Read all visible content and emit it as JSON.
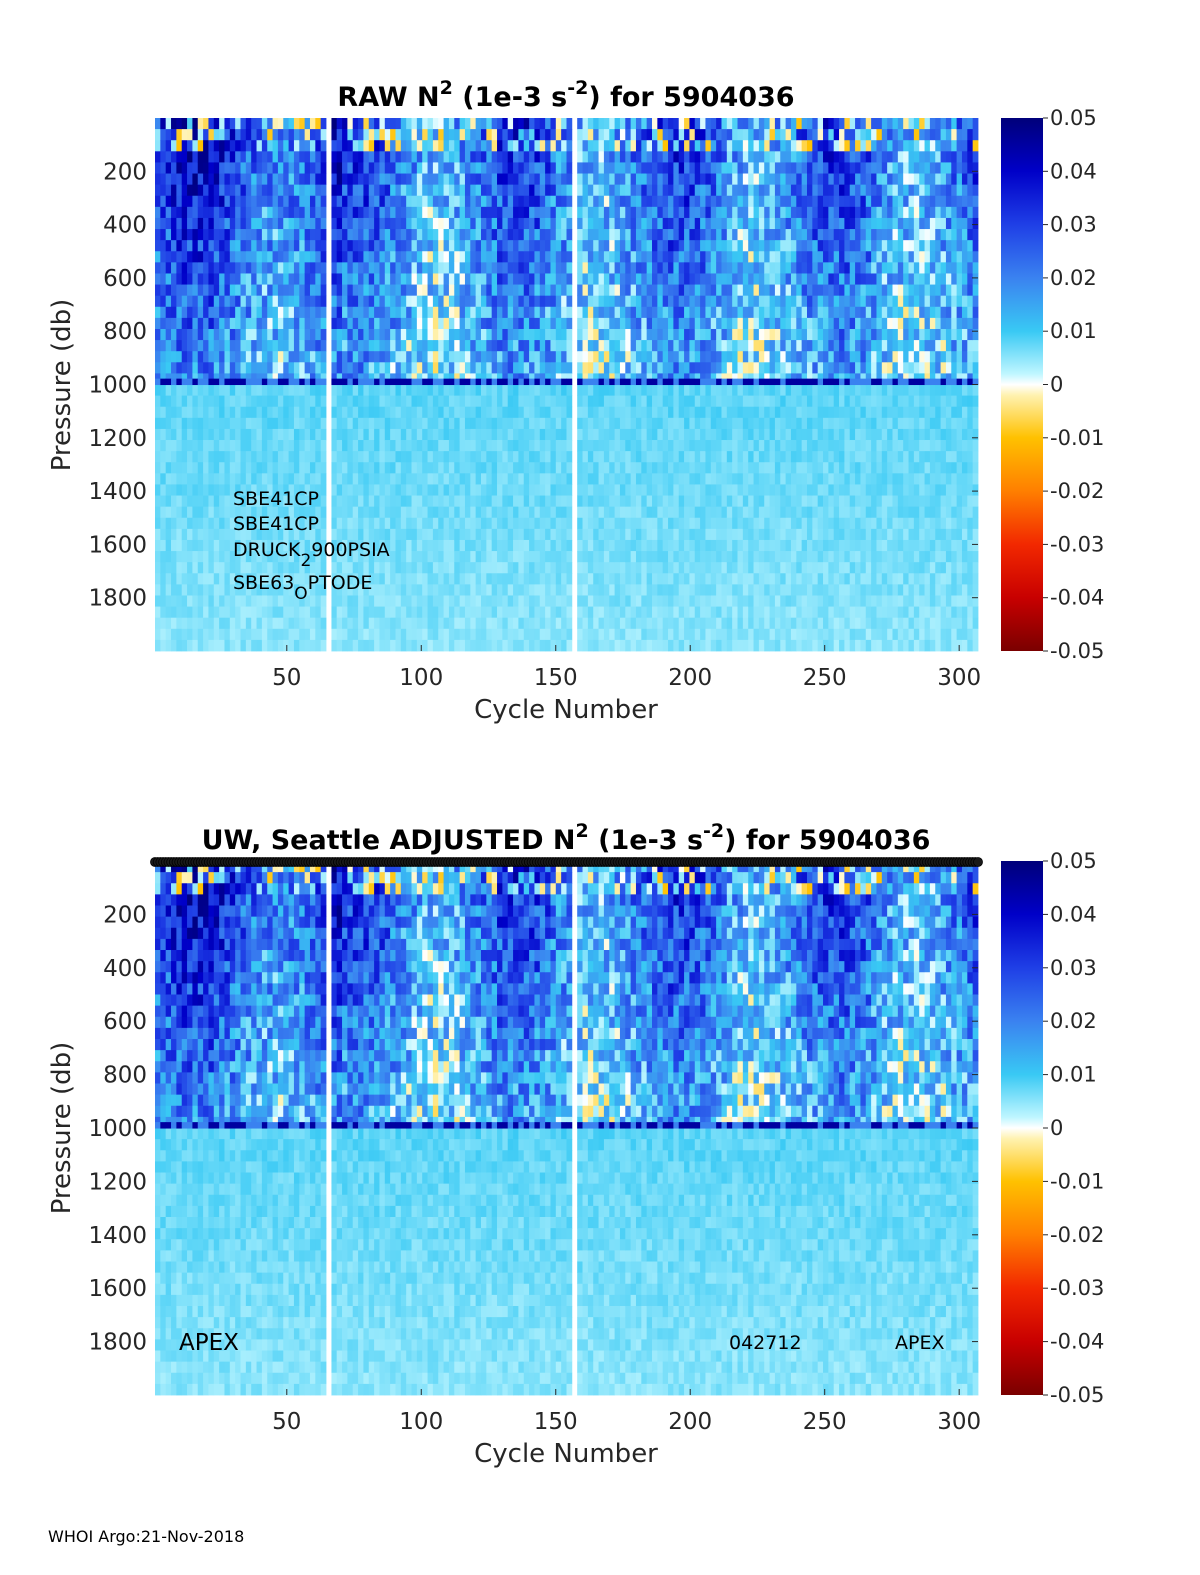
{
  "chart_data": [
    {
      "type": "heatmap",
      "title_parts": [
        "RAW N",
        "2",
        " (1e-3 s",
        "-2",
        ") for 5904036"
      ],
      "xlabel": "Cycle Number",
      "ylabel": "Pressure (db)",
      "x_ticks": [
        "50",
        "100",
        "150",
        "200",
        "250",
        "300"
      ],
      "x_tick_values": [
        50,
        100,
        150,
        200,
        250,
        300
      ],
      "y_ticks": [
        "200",
        "400",
        "600",
        "800",
        "1000",
        "1200",
        "1400",
        "1600",
        "1800"
      ],
      "y_tick_values": [
        200,
        400,
        600,
        800,
        1000,
        1200,
        1400,
        1600,
        1800
      ],
      "xlim": [
        1,
        307
      ],
      "ylim": [
        0,
        2000
      ],
      "y_reversed": true,
      "colorbar": {
        "ticks": [
          "0.05",
          "0.04",
          "0.03",
          "0.02",
          "0.01",
          "0",
          "-0.01",
          "-0.02",
          "-0.03",
          "-0.04",
          "-0.05"
        ],
        "range": [
          -0.05,
          0.05
        ]
      },
      "missing_cycles": [
        66,
        157
      ],
      "annotations": [
        {
          "base": "SBE41CP",
          "sub": "",
          "rest": ""
        },
        {
          "base": "SBE41CP",
          "sub": "",
          "rest": ""
        },
        {
          "base": "DRUCK",
          "sub": "2",
          "rest": "900PSIA"
        },
        {
          "base": "SBE63",
          "sub": "O",
          "rest": "PTODE"
        }
      ],
      "description_bands": {
        "upper_layer_max_pressure": 980,
        "boundary_pressure": 990,
        "deep_layer_value": 0.008
      }
    },
    {
      "type": "heatmap",
      "title_parts": [
        "UW, Seattle  ADJUSTED N",
        "2",
        " (1e-3 s",
        "-2",
        ") for 5904036"
      ],
      "xlabel": "Cycle Number",
      "ylabel": "Pressure (db)",
      "x_ticks": [
        "50",
        "100",
        "150",
        "200",
        "250",
        "300"
      ],
      "x_tick_values": [
        50,
        100,
        150,
        200,
        250,
        300
      ],
      "y_ticks": [
        "200",
        "400",
        "600",
        "800",
        "1000",
        "1200",
        "1400",
        "1600",
        "1800"
      ],
      "y_tick_values": [
        200,
        400,
        600,
        800,
        1000,
        1200,
        1400,
        1600,
        1800
      ],
      "xlim": [
        1,
        307
      ],
      "ylim": [
        0,
        2000
      ],
      "y_reversed": true,
      "colorbar": {
        "ticks": [
          "0.05",
          "0.04",
          "0.03",
          "0.02",
          "0.01",
          "0",
          "-0.01",
          "-0.02",
          "-0.03",
          "-0.04",
          "-0.05"
        ],
        "range": [
          -0.05,
          0.05
        ]
      },
      "missing_cycles": [
        66,
        157
      ],
      "annotations_bottom": [
        "APEX",
        "042712",
        "APEX"
      ],
      "description_bands": {
        "upper_layer_max_pressure": 980,
        "boundary_pressure": 990,
        "deep_layer_value": 0.008
      }
    }
  ],
  "footer": "WHOI Argo:21-Nov-2018"
}
